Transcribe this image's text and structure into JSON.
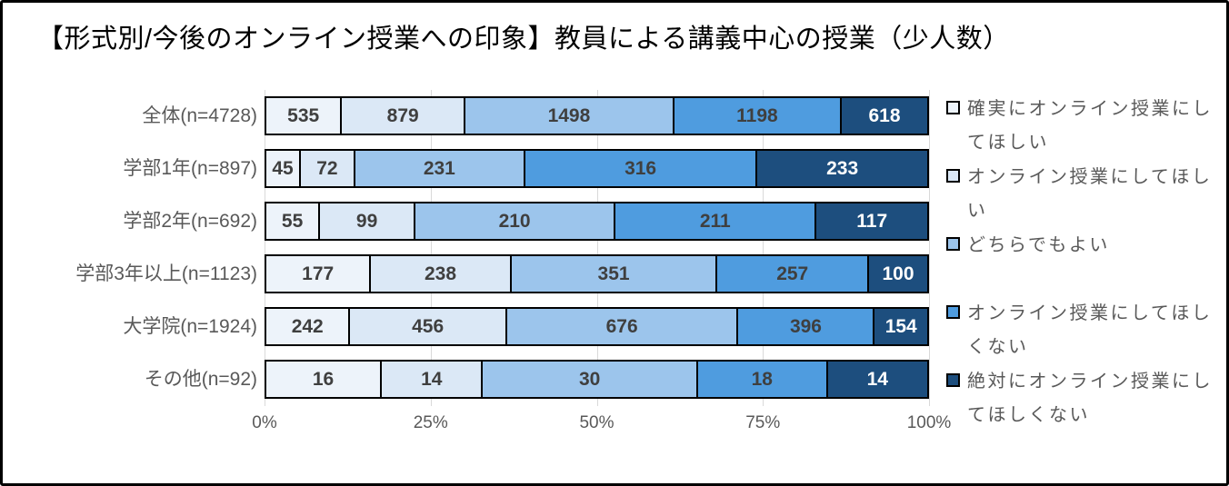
{
  "title": "【形式別/今後のオンライン授業への印象】教員による講義中心の授業（少人数）",
  "chart_data": {
    "type": "bar",
    "stacked": true,
    "orientation": "horizontal",
    "normalized": "each row shown as 100% of its n",
    "title": "【形式別/今後のオンライン授業への印象】教員による講義中心の授業（少人数）",
    "categories": [
      "全体(n=4728)",
      "学部1年(n=897)",
      "学部2年(n=692)",
      "学部3年以上(n=1123)",
      "大学院(n=1924)",
      "その他(n=92)"
    ],
    "series": [
      {
        "name": "確実にオンライン授業にしてほしい",
        "color": "#EDF3FA",
        "label_color": "#3F3F3F",
        "values": [
          535,
          45,
          55,
          177,
          242,
          16
        ]
      },
      {
        "name": "オンライン授業にしてほしい",
        "color": "#DBE8F6",
        "label_color": "#3F3F3F",
        "values": [
          879,
          72,
          99,
          238,
          456,
          14
        ]
      },
      {
        "name": "どちらでもよい",
        "color": "#9CC5EC",
        "label_color": "#3F3F3F",
        "values": [
          1498,
          231,
          210,
          351,
          676,
          30
        ]
      },
      {
        "name": "オンライン授業にしてほしくない",
        "color": "#4F9CDF",
        "label_color": "#3F3F3F",
        "values": [
          1198,
          316,
          211,
          257,
          396,
          18
        ]
      },
      {
        "name": "絶対にオンライン授業にしてほしくない",
        "color": "#1D4E7E",
        "label_color": "#FFFFFF",
        "values": [
          618,
          233,
          117,
          100,
          154,
          14
        ]
      }
    ],
    "x_ticks": [
      "0%",
      "25%",
      "50%",
      "75%",
      "100%"
    ],
    "xlim": [
      0,
      100
    ],
    "grid": true,
    "legend_position": "right",
    "colors": {
      "grid": "#d9d9d9",
      "axis_text": "#595959",
      "category_text": "#595959",
      "bar_border": "#000000",
      "frame_border": "#000000",
      "background": "#ffffff"
    }
  }
}
